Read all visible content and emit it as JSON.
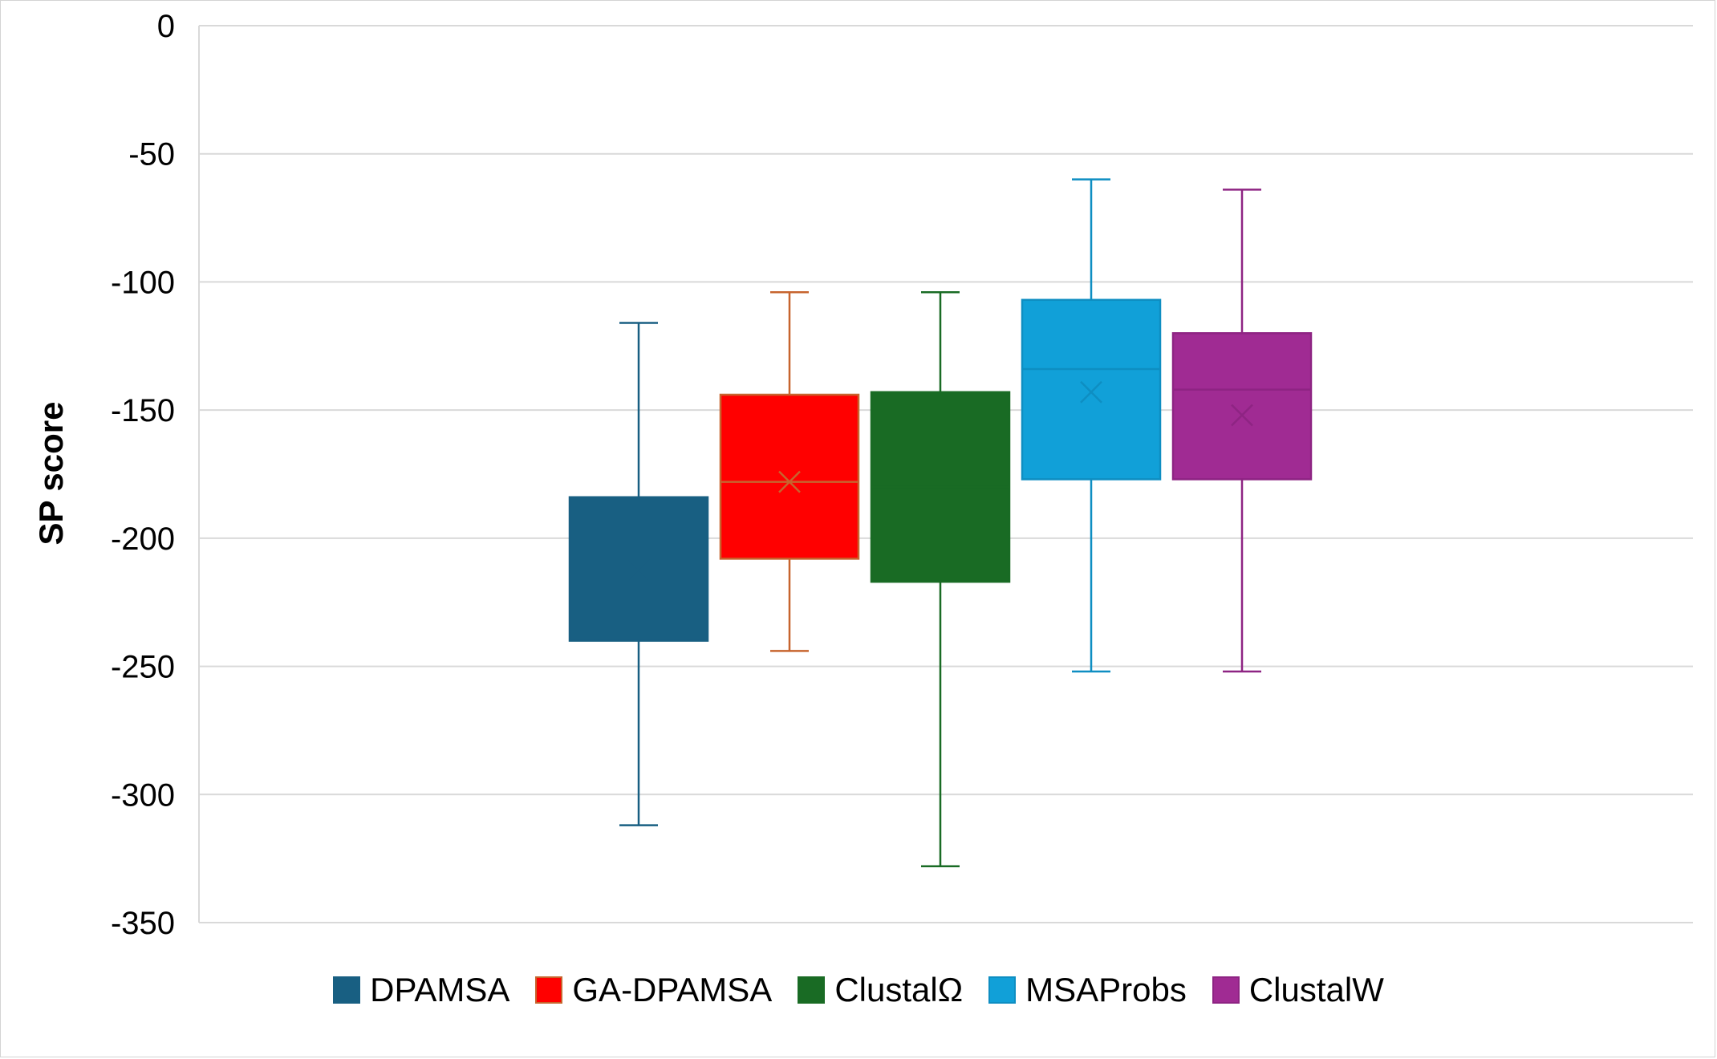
{
  "chart_data": {
    "type": "box",
    "title": "",
    "xlabel": "",
    "ylabel": "SP score",
    "ylim": [
      -350,
      0
    ],
    "yticks": [
      0,
      -50,
      -100,
      -150,
      -200,
      -250,
      -300,
      -350
    ],
    "grid": true,
    "legend_position": "bottom",
    "series": [
      {
        "name": "DPAMSA",
        "color": "#185F82",
        "edge": "#185F82",
        "whisker": "#185F82",
        "min": -312,
        "q1": -240,
        "median": -214,
        "q3": -184,
        "max": -116,
        "mean": -212
      },
      {
        "name": "GA-DPAMSA",
        "color": "#FF0000",
        "edge": "#C7642E",
        "whisker": "#C7642E",
        "min": -244,
        "q1": -208,
        "median": -178,
        "q3": -144,
        "max": -104,
        "mean": -178
      },
      {
        "name": "ClustalΩ",
        "color": "#196B24",
        "edge": "#196B24",
        "whisker": "#196B24",
        "min": -328,
        "q1": -217,
        "median": -180,
        "q3": -143,
        "max": -104,
        "mean": -186
      },
      {
        "name": "MSAProbs",
        "color": "#11A0D8",
        "edge": "#0E8EC2",
        "whisker": "#0E8EC2",
        "min": -252,
        "q1": -177,
        "median": -134,
        "q3": -107,
        "max": -60,
        "mean": -143
      },
      {
        "name": "ClustalW",
        "color": "#A02B93",
        "edge": "#8E2483",
        "whisker": "#8E2483",
        "min": -252,
        "q1": -177,
        "median": -142,
        "q3": -120,
        "max": -64,
        "mean": -152
      }
    ]
  }
}
